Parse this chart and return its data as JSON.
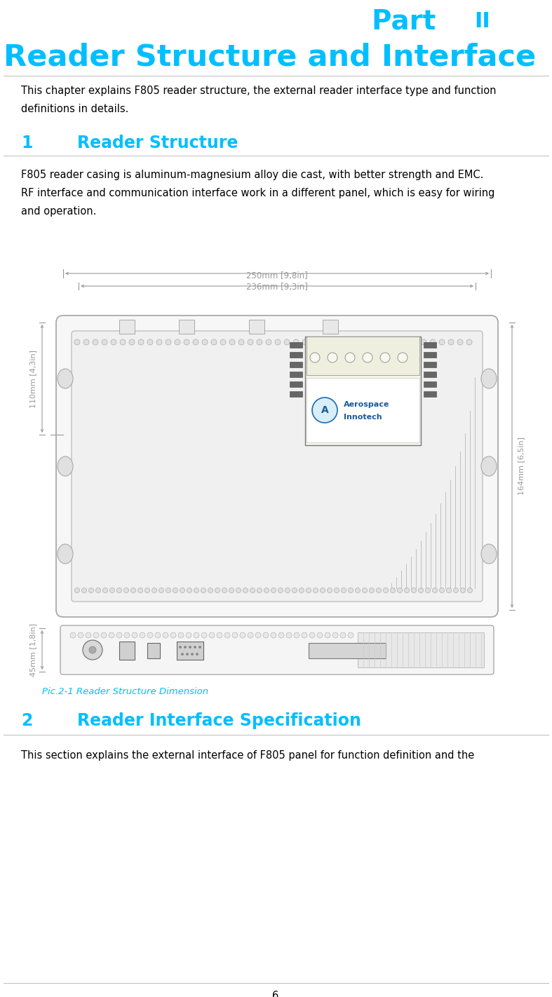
{
  "bg_color": "#ffffff",
  "cyan_color": "#00BFFF",
  "black_color": "#000000",
  "gray_dim": "#888888",
  "caption_color": "#00BFFF",
  "part_text": "Part ",
  "part_roman": "II",
  "title_text": "Reader Structure and Interface",
  "intro_line1": "This chapter explains F805 reader structure, the external reader interface type and function",
  "intro_line2": "definitions in details.",
  "section1_num": "1",
  "section1_title": "Reader Structure",
  "body1_line1": "F805 reader casing is aluminum-magnesium alloy die cast, with better strength and EMC.",
  "body1_line2": "RF interface and communication interface work in a different panel, which is easy for wiring",
  "body1_line3": "and operation.",
  "caption_text": "Pic.2-1 Reader Structure Dimension",
  "section2_num": "2",
  "section2_title": "Reader Interface Specification",
  "body2_line1": "This section explains the external interface of F805 panel for function definition and the",
  "page_num": "6",
  "fig_top_label1": "250mm [9,8in]",
  "fig_top_label2": "236mm [9,3in]",
  "fig_left_label1": "110mm [4,3in]",
  "fig_right_label1": "164mm [6,5in]",
  "fig_bottom_left": "45mm [1,8in]"
}
